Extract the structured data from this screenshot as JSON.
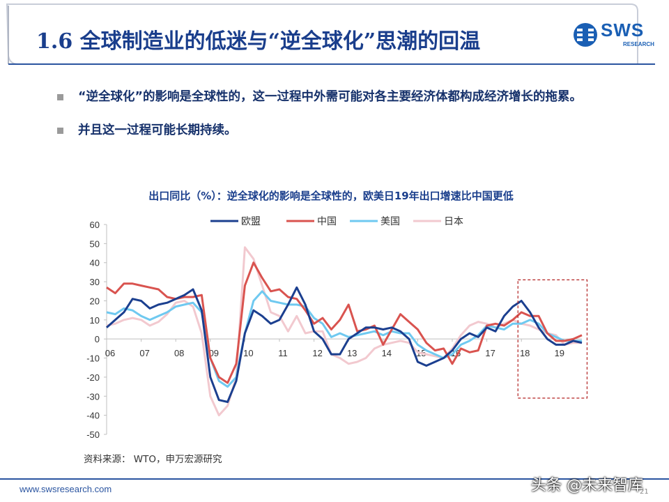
{
  "header": {
    "title": "1.6 全球制造业的低迷与“逆全球化”思潮的回温",
    "logo_text": "SWS",
    "logo_sub": "RESEARCH"
  },
  "bullets": [
    "“逆全球化”的影响是全球性的，这一过程中外需可能对各主要经济体都构成经济增长的拖累。",
    "并且这一过程可能长期持续。"
  ],
  "source": "资料来源： WTO，申万宏源研究",
  "footer": {
    "url": "www.swsresearch.com",
    "page": "21",
    "watermark": "头条 @未来智库"
  },
  "colors": {
    "title": "#1a3e8c",
    "eu": "#1b3f8f",
    "china": "#d9534f",
    "us": "#6fc9f0",
    "japan": "#f2c9cf",
    "highlight_box": "#b22222"
  },
  "chart_data": {
    "type": "line",
    "title": "出口同比（%）：逆全球化的影响是全球性的，欧美日19年出口增速比中国更低",
    "ylim": [
      -50,
      60
    ],
    "yticks": [
      60,
      50,
      40,
      30,
      20,
      10,
      0,
      -10,
      -20,
      -30,
      -40,
      -50
    ],
    "xtick_labels": [
      "06",
      "07",
      "08",
      "09",
      "10",
      "11",
      "12",
      "13",
      "14",
      "15",
      "16",
      "17",
      "18",
      "19"
    ],
    "legend": "top",
    "grid": false,
    "x_start": 2006.0,
    "x_end": 2019.75,
    "highlight": {
      "x_from": 2017.9,
      "x_to": 2019.9,
      "y_from": -31,
      "y_to": 31
    },
    "series": [
      {
        "name": "欧盟",
        "points": [
          [
            2006.0,
            6
          ],
          [
            2006.25,
            10
          ],
          [
            2006.5,
            14
          ],
          [
            2006.75,
            21
          ],
          [
            2007.0,
            20
          ],
          [
            2007.25,
            16
          ],
          [
            2007.5,
            18
          ],
          [
            2007.75,
            19
          ],
          [
            2008.0,
            21
          ],
          [
            2008.25,
            23
          ],
          [
            2008.5,
            26
          ],
          [
            2008.75,
            15
          ],
          [
            2009.0,
            -20
          ],
          [
            2009.25,
            -32
          ],
          [
            2009.5,
            -33
          ],
          [
            2009.75,
            -22
          ],
          [
            2010.0,
            3
          ],
          [
            2010.25,
            15
          ],
          [
            2010.5,
            12
          ],
          [
            2010.75,
            8
          ],
          [
            2011.0,
            10
          ],
          [
            2011.25,
            18
          ],
          [
            2011.5,
            27
          ],
          [
            2011.75,
            18
          ],
          [
            2012.0,
            4
          ],
          [
            2012.25,
            0
          ],
          [
            2012.5,
            -8
          ],
          [
            2012.75,
            -8
          ],
          [
            2013.0,
            0
          ],
          [
            2013.25,
            3
          ],
          [
            2013.5,
            6
          ],
          [
            2013.75,
            6
          ],
          [
            2014.0,
            5
          ],
          [
            2014.25,
            6
          ],
          [
            2014.5,
            4
          ],
          [
            2014.75,
            0
          ],
          [
            2015.0,
            -12
          ],
          [
            2015.25,
            -14
          ],
          [
            2015.5,
            -12
          ],
          [
            2015.75,
            -10
          ],
          [
            2016.0,
            -6
          ],
          [
            2016.25,
            0
          ],
          [
            2016.5,
            3
          ],
          [
            2016.75,
            1
          ],
          [
            2017.0,
            6
          ],
          [
            2017.25,
            4
          ],
          [
            2017.5,
            12
          ],
          [
            2017.75,
            17
          ],
          [
            2018.0,
            20
          ],
          [
            2018.25,
            14
          ],
          [
            2018.5,
            6
          ],
          [
            2018.75,
            0
          ],
          [
            2019.0,
            -3
          ],
          [
            2019.25,
            -3
          ],
          [
            2019.5,
            -1
          ],
          [
            2019.75,
            -2
          ]
        ]
      },
      {
        "name": "中国",
        "points": [
          [
            2006.0,
            27
          ],
          [
            2006.25,
            24
          ],
          [
            2006.5,
            29
          ],
          [
            2006.75,
            29
          ],
          [
            2007.0,
            28
          ],
          [
            2007.25,
            27
          ],
          [
            2007.5,
            26
          ],
          [
            2007.75,
            22
          ],
          [
            2008.0,
            21
          ],
          [
            2008.25,
            22
          ],
          [
            2008.5,
            22
          ],
          [
            2008.75,
            23
          ],
          [
            2009.0,
            -10
          ],
          [
            2009.25,
            -20
          ],
          [
            2009.5,
            -23
          ],
          [
            2009.75,
            -13
          ],
          [
            2010.0,
            28
          ],
          [
            2010.25,
            40
          ],
          [
            2010.5,
            32
          ],
          [
            2010.75,
            25
          ],
          [
            2011.0,
            26
          ],
          [
            2011.25,
            22
          ],
          [
            2011.5,
            21
          ],
          [
            2011.75,
            15
          ],
          [
            2012.0,
            8
          ],
          [
            2012.25,
            11
          ],
          [
            2012.5,
            5
          ],
          [
            2012.75,
            10
          ],
          [
            2013.0,
            18
          ],
          [
            2013.25,
            4
          ],
          [
            2013.5,
            5
          ],
          [
            2013.75,
            7
          ],
          [
            2014.0,
            -3
          ],
          [
            2014.25,
            5
          ],
          [
            2014.5,
            13
          ],
          [
            2014.75,
            9
          ],
          [
            2015.0,
            5
          ],
          [
            2015.25,
            -2
          ],
          [
            2015.5,
            -6
          ],
          [
            2015.75,
            -5
          ],
          [
            2016.0,
            -13
          ],
          [
            2016.25,
            -5
          ],
          [
            2016.5,
            -7
          ],
          [
            2016.75,
            -6
          ],
          [
            2017.0,
            7
          ],
          [
            2017.25,
            8
          ],
          [
            2017.5,
            7
          ],
          [
            2017.75,
            10
          ],
          [
            2018.0,
            14
          ],
          [
            2018.25,
            12
          ],
          [
            2018.5,
            12
          ],
          [
            2018.75,
            3
          ],
          [
            2019.0,
            -1
          ],
          [
            2019.25,
            -1
          ],
          [
            2019.5,
            0
          ],
          [
            2019.75,
            2
          ]
        ]
      },
      {
        "name": "美国",
        "points": [
          [
            2006.0,
            14
          ],
          [
            2006.25,
            13
          ],
          [
            2006.5,
            16
          ],
          [
            2006.75,
            15
          ],
          [
            2007.0,
            12
          ],
          [
            2007.25,
            10
          ],
          [
            2007.5,
            12
          ],
          [
            2007.75,
            14
          ],
          [
            2008.0,
            17
          ],
          [
            2008.25,
            18
          ],
          [
            2008.5,
            19
          ],
          [
            2008.75,
            14
          ],
          [
            2009.0,
            -10
          ],
          [
            2009.25,
            -22
          ],
          [
            2009.5,
            -25
          ],
          [
            2009.75,
            -20
          ],
          [
            2010.0,
            3
          ],
          [
            2010.25,
            20
          ],
          [
            2010.5,
            25
          ],
          [
            2010.75,
            20
          ],
          [
            2011.0,
            19
          ],
          [
            2011.25,
            18
          ],
          [
            2011.5,
            18
          ],
          [
            2011.75,
            17
          ],
          [
            2012.0,
            11
          ],
          [
            2012.25,
            8
          ],
          [
            2012.5,
            1
          ],
          [
            2012.75,
            3
          ],
          [
            2013.0,
            1
          ],
          [
            2013.25,
            2
          ],
          [
            2013.5,
            3
          ],
          [
            2013.75,
            4
          ],
          [
            2014.0,
            2
          ],
          [
            2014.25,
            4
          ],
          [
            2014.5,
            3
          ],
          [
            2014.75,
            3
          ],
          [
            2015.0,
            -3
          ],
          [
            2015.25,
            -6
          ],
          [
            2015.5,
            -8
          ],
          [
            2015.75,
            -10
          ],
          [
            2016.0,
            -8
          ],
          [
            2016.25,
            -3
          ],
          [
            2016.5,
            -1
          ],
          [
            2016.75,
            2
          ],
          [
            2017.0,
            7
          ],
          [
            2017.25,
            6
          ],
          [
            2017.5,
            5
          ],
          [
            2017.75,
            8
          ],
          [
            2018.0,
            8
          ],
          [
            2018.25,
            10
          ],
          [
            2018.5,
            8
          ],
          [
            2018.75,
            3
          ],
          [
            2019.0,
            1
          ],
          [
            2019.25,
            -1
          ],
          [
            2019.5,
            -1
          ],
          [
            2019.75,
            -1
          ]
        ]
      },
      {
        "name": "日本",
        "points": [
          [
            2006.0,
            7
          ],
          [
            2006.25,
            8
          ],
          [
            2006.5,
            10
          ],
          [
            2006.75,
            11
          ],
          [
            2007.0,
            10
          ],
          [
            2007.25,
            7
          ],
          [
            2007.5,
            9
          ],
          [
            2007.75,
            13
          ],
          [
            2008.0,
            19
          ],
          [
            2008.25,
            20
          ],
          [
            2008.5,
            17
          ],
          [
            2008.75,
            3
          ],
          [
            2009.0,
            -30
          ],
          [
            2009.25,
            -40
          ],
          [
            2009.5,
            -35
          ],
          [
            2009.75,
            -20
          ],
          [
            2010.0,
            48
          ],
          [
            2010.25,
            42
          ],
          [
            2010.5,
            28
          ],
          [
            2010.75,
            14
          ],
          [
            2011.0,
            12
          ],
          [
            2011.25,
            4
          ],
          [
            2011.5,
            12
          ],
          [
            2011.75,
            3
          ],
          [
            2012.0,
            4
          ],
          [
            2012.25,
            4
          ],
          [
            2012.5,
            -8
          ],
          [
            2012.75,
            -10
          ],
          [
            2013.0,
            -13
          ],
          [
            2013.25,
            -12
          ],
          [
            2013.5,
            -10
          ],
          [
            2013.75,
            -5
          ],
          [
            2014.0,
            -3
          ],
          [
            2014.25,
            -2
          ],
          [
            2014.5,
            -1
          ],
          [
            2014.75,
            -2
          ],
          [
            2015.0,
            -7
          ],
          [
            2015.25,
            -8
          ],
          [
            2015.5,
            -9
          ],
          [
            2015.75,
            -10
          ],
          [
            2016.0,
            -5
          ],
          [
            2016.25,
            2
          ],
          [
            2016.5,
            7
          ],
          [
            2016.75,
            9
          ],
          [
            2017.0,
            8
          ],
          [
            2017.25,
            6
          ],
          [
            2017.5,
            8
          ],
          [
            2017.75,
            10
          ],
          [
            2018.0,
            8
          ],
          [
            2018.25,
            7
          ],
          [
            2018.5,
            5
          ],
          [
            2018.75,
            3
          ],
          [
            2019.0,
            2
          ],
          [
            2019.25,
            -3
          ],
          [
            2019.5,
            -2
          ],
          [
            2019.75,
            -2
          ]
        ]
      }
    ]
  }
}
